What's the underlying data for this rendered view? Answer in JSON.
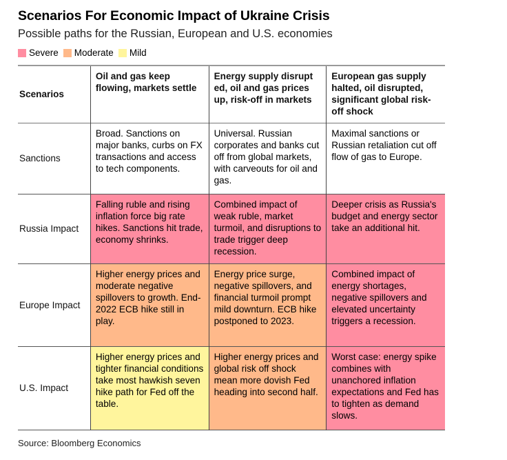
{
  "header": {
    "title": "Scenarios For Economic Impact of Ukraine Crisis",
    "subtitle": "Possible paths for the Russian, European and U.S. economies"
  },
  "legend": [
    {
      "label": "Severe",
      "color": "#ff8da1"
    },
    {
      "label": "Moderate",
      "color": "#ffb98a"
    },
    {
      "label": "Mild",
      "color": "#fff59d"
    }
  ],
  "table": {
    "corner_label": "Scenarios",
    "columns": [
      "Oil and gas keep flowing, markets settle",
      "Energy supply disrupt ed, oil and gas prices up, risk-off in markets",
      "European gas supply halted, oil disrupted, significant global risk-off shock"
    ],
    "rows": [
      {
        "label": "Sanctions",
        "cells": [
          {
            "text": "Broad. Sanctions on major banks, curbs on FX transactions and access to tech components.",
            "severity": "none",
            "color": "#ffffff"
          },
          {
            "text": "Universal. Russian corporates and banks cut off from global markets, with carveouts for oil and gas.",
            "severity": "none",
            "color": "#ffffff"
          },
          {
            "text": "Maximal sanctions or Russian retaliation cut off flow of gas to Europe.",
            "severity": "none",
            "color": "#ffffff"
          }
        ]
      },
      {
        "label": "Russia Impact",
        "cells": [
          {
            "text": "Falling ruble and rising inflation force big rate hikes. Sanctions hit trade, economy shrinks.",
            "severity": "Severe",
            "color": "#ff8da1"
          },
          {
            "text": "Combined impact of weak ruble, market turmoil, and disruptions to trade trigger deep recession.",
            "severity": "Severe",
            "color": "#ff8da1"
          },
          {
            "text": "Deeper crisis as Russia's budget and energy sector take an additional hit.",
            "severity": "Severe",
            "color": "#ff8da1"
          }
        ]
      },
      {
        "label": "Europe Impact",
        "cells": [
          {
            "text": "Higher energy prices and moderate negative spillovers to growth. End-2022 ECB hike still in play.",
            "severity": "Moderate",
            "color": "#ffb98a"
          },
          {
            "text": "Energy price surge, negative spillovers, and financial turmoil prompt mild downturn. ECB hike postponed to 2023.",
            "severity": "Moderate",
            "color": "#ffb98a"
          },
          {
            "text": "Combined impact of energy shortages, negative spillovers and elevated uncertainty triggers a recession.",
            "severity": "Severe",
            "color": "#ff8da1"
          }
        ]
      },
      {
        "label": "U.S. Impact",
        "cells": [
          {
            "text": "Higher energy prices and tighter financial conditions take most hawkish seven hike path for Fed off the table.",
            "severity": "Mild",
            "color": "#fff59d"
          },
          {
            "text": "Higher energy prices and global risk off shock mean more dovish Fed heading into second half.",
            "severity": "Moderate",
            "color": "#ffb98a"
          },
          {
            "text": "Worst case: energy spike combines with unanchored inflation expectations and Fed has to tighten as demand slows.",
            "severity": "Severe",
            "color": "#ff8da1"
          }
        ]
      }
    ]
  },
  "footer": {
    "source": "Source: Bloomberg Economics"
  }
}
